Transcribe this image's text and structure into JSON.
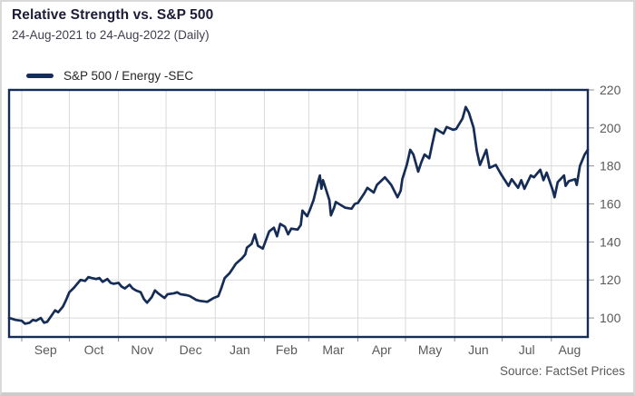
{
  "header": {
    "title": "Relative Strength vs. S&P 500",
    "subtitle": "24-Aug-2021 to 24-Aug-2022 (Daily)"
  },
  "legend": {
    "label": "S&P 500 / Energy -SEC"
  },
  "footer": {
    "source": "Source: FactSet Prices"
  },
  "colors": {
    "line": "#152c56",
    "plot_border": "#152c56",
    "grid": "#d9d9d9",
    "tick": "#8c8c8c",
    "tick_label": "#595959",
    "title": "#1c1c3a",
    "subtitle": "#3f3f4f"
  },
  "chart_data": {
    "type": "line",
    "title": "Relative Strength vs. S&P 500",
    "subtitle": "24-Aug-2021 to 24-Aug-2022 (Daily)",
    "xlabel": "",
    "ylabel": "",
    "x_unit": "days since 24-Aug-2021",
    "x_total_days": 365,
    "ylim": [
      90,
      220
    ],
    "yticks": [
      100,
      120,
      140,
      160,
      180,
      200,
      220
    ],
    "y_axis_side": "right",
    "grid": true,
    "legend_position": "top-left",
    "source": "Source: FactSet Prices",
    "months": [
      {
        "label": "Sep",
        "start": 8
      },
      {
        "label": "Oct",
        "start": 38
      },
      {
        "label": "Nov",
        "start": 69
      },
      {
        "label": "Dec",
        "start": 99
      },
      {
        "label": "Jan",
        "start": 130
      },
      {
        "label": "Feb",
        "start": 161
      },
      {
        "label": "Mar",
        "start": 189
      },
      {
        "label": "Apr",
        "start": 220
      },
      {
        "label": "May",
        "start": 250
      },
      {
        "label": "Jun",
        "start": 281
      },
      {
        "label": "Jul",
        "start": 311
      },
      {
        "label": "Aug",
        "start": 342,
        "end": 365
      }
    ],
    "series": [
      {
        "name": "S&P 500 / Energy -SEC",
        "points": [
          [
            0,
            100
          ],
          [
            2,
            99.5
          ],
          [
            4,
            99
          ],
          [
            8,
            98.5
          ],
          [
            10,
            97
          ],
          [
            13,
            97.5
          ],
          [
            15,
            99
          ],
          [
            17,
            98.5
          ],
          [
            20,
            100
          ],
          [
            22,
            97.5
          ],
          [
            24,
            98
          ],
          [
            27,
            101.5
          ],
          [
            29,
            104
          ],
          [
            31,
            103
          ],
          [
            34,
            106
          ],
          [
            36,
            109.5
          ],
          [
            38,
            113.5
          ],
          [
            41,
            116
          ],
          [
            43,
            118
          ],
          [
            45,
            120
          ],
          [
            48,
            119.5
          ],
          [
            50,
            121.5
          ],
          [
            52,
            121
          ],
          [
            55,
            120.5
          ],
          [
            57,
            121
          ],
          [
            59,
            119
          ],
          [
            62,
            120.5
          ],
          [
            64,
            118.5
          ],
          [
            66,
            118
          ],
          [
            69,
            118.5
          ],
          [
            71,
            116.5
          ],
          [
            73,
            115.5
          ],
          [
            76,
            117.5
          ],
          [
            78,
            115.5
          ],
          [
            80,
            114.5
          ],
          [
            83,
            113.5
          ],
          [
            85,
            110
          ],
          [
            87,
            108
          ],
          [
            90,
            111
          ],
          [
            92,
            114.5
          ],
          [
            94,
            113
          ],
          [
            98,
            110.5
          ],
          [
            100,
            112.5
          ],
          [
            104,
            113
          ],
          [
            106,
            113.5
          ],
          [
            108,
            112.5
          ],
          [
            112,
            112
          ],
          [
            114,
            111.5
          ],
          [
            118,
            109.5
          ],
          [
            120,
            109
          ],
          [
            125,
            108.5
          ],
          [
            127,
            109.5
          ],
          [
            129,
            110.5
          ],
          [
            132,
            111.5
          ],
          [
            134,
            116
          ],
          [
            136,
            121
          ],
          [
            139,
            123.5
          ],
          [
            141,
            126
          ],
          [
            143,
            128.5
          ],
          [
            147,
            131.5
          ],
          [
            149,
            133.5
          ],
          [
            150,
            137
          ],
          [
            153,
            139
          ],
          [
            155,
            144
          ],
          [
            157,
            138
          ],
          [
            160,
            136.5
          ],
          [
            162,
            141
          ],
          [
            164,
            145.5
          ],
          [
            167,
            147.5
          ],
          [
            169,
            143
          ],
          [
            171,
            149.5
          ],
          [
            174,
            148
          ],
          [
            176,
            144
          ],
          [
            178,
            147
          ],
          [
            182,
            146.5
          ],
          [
            184,
            149
          ],
          [
            185,
            156.5
          ],
          [
            188,
            153.5
          ],
          [
            190,
            157.5
          ],
          [
            192,
            162
          ],
          [
            195,
            172
          ],
          [
            196,
            175
          ],
          [
            197,
            168
          ],
          [
            198,
            172.5
          ],
          [
            202,
            162
          ],
          [
            203,
            154
          ],
          [
            205,
            158
          ],
          [
            206,
            161
          ],
          [
            210,
            159
          ],
          [
            212,
            158
          ],
          [
            216,
            157.5
          ],
          [
            218,
            160
          ],
          [
            220,
            160.5
          ],
          [
            224,
            165.5
          ],
          [
            226,
            168.5
          ],
          [
            230,
            166
          ],
          [
            232,
            170
          ],
          [
            237,
            174
          ],
          [
            239,
            172
          ],
          [
            241,
            170
          ],
          [
            245,
            163.5
          ],
          [
            247,
            167
          ],
          [
            248,
            173
          ],
          [
            251,
            181
          ],
          [
            253,
            188.5
          ],
          [
            255,
            186
          ],
          [
            258,
            177
          ],
          [
            260,
            182
          ],
          [
            262,
            186
          ],
          [
            265,
            184
          ],
          [
            267,
            192
          ],
          [
            269,
            199.5
          ],
          [
            274,
            197
          ],
          [
            276,
            200.5
          ],
          [
            280,
            199
          ],
          [
            282,
            199.5
          ],
          [
            286,
            205
          ],
          [
            288,
            211
          ],
          [
            290,
            208
          ],
          [
            293,
            200
          ],
          [
            295,
            188
          ],
          [
            297,
            180.5
          ],
          [
            301,
            188.5
          ],
          [
            303,
            179
          ],
          [
            307,
            180.5
          ],
          [
            310,
            176
          ],
          [
            315,
            169.5
          ],
          [
            317,
            173
          ],
          [
            321,
            168.5
          ],
          [
            323,
            172.5
          ],
          [
            325,
            168
          ],
          [
            329,
            175
          ],
          [
            331,
            174
          ],
          [
            335,
            178
          ],
          [
            337,
            172.5
          ],
          [
            339,
            176.5
          ],
          [
            343,
            167
          ],
          [
            344,
            163.5
          ],
          [
            346,
            171.5
          ],
          [
            350,
            175
          ],
          [
            351,
            169.5
          ],
          [
            353,
            172
          ],
          [
            357,
            173
          ],
          [
            358,
            170
          ],
          [
            360,
            180
          ],
          [
            363,
            186
          ],
          [
            365,
            188.5
          ]
        ]
      }
    ]
  }
}
